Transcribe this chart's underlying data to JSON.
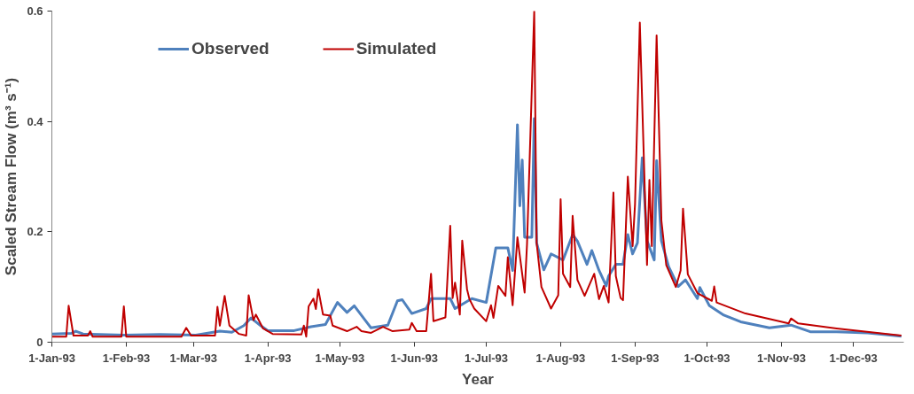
{
  "chart_data": {
    "type": "line",
    "xlabel": "Year",
    "ylabel": "Scaled Stream Flow (m³ s⁻¹)",
    "xlim": [
      "1993-01-01",
      "1993-12-22"
    ],
    "xticks": [
      {
        "value": "1993-01-01",
        "label": "1-Jan-93"
      },
      {
        "value": "1993-02-01",
        "label": "1-Feb-93"
      },
      {
        "value": "1993-03-01",
        "label": "1-Mar-93"
      },
      {
        "value": "1993-04-01",
        "label": "1-Apr-93"
      },
      {
        "value": "1993-05-01",
        "label": "1-May-93"
      },
      {
        "value": "1993-06-01",
        "label": "1-Jun-93"
      },
      {
        "value": "1993-07-01",
        "label": "1-Jul-93"
      },
      {
        "value": "1993-08-01",
        "label": "1-Aug-93"
      },
      {
        "value": "1993-09-01",
        "label": "1-Sep-93"
      },
      {
        "value": "1993-10-01",
        "label": "1-Oct-93"
      },
      {
        "value": "1993-11-01",
        "label": "1-Nov-93"
      },
      {
        "value": "1993-12-01",
        "label": "1-Dec-93"
      }
    ],
    "ylim": [
      0,
      0.6
    ],
    "yticks": [
      0,
      0.2,
      0.4,
      0.6
    ],
    "grid": false,
    "legend": "top left",
    "marker": "none",
    "line_style": "solid",
    "series": [
      {
        "name": "Observed",
        "color": "#4f81bd",
        "x": [
          "1993-01-01",
          "1993-01-09",
          "1993-01-11",
          "1993-01-14",
          "1993-01-31",
          "1993-02-15",
          "1993-03-02",
          "1993-03-12",
          "1993-03-17",
          "1993-03-22",
          "1993-03-25",
          "1993-03-29",
          "1993-04-01",
          "1993-04-12",
          "1993-04-19",
          "1993-04-25",
          "1993-04-30",
          "1993-05-04",
          "1993-05-07",
          "1993-05-14",
          "1993-05-21",
          "1993-05-25",
          "1993-05-27",
          "1993-05-31",
          "1993-06-06",
          "1993-06-08",
          "1993-06-16",
          "1993-06-18",
          "1993-06-25",
          "1993-07-01",
          "1993-07-05",
          "1993-07-10",
          "1993-07-12",
          "1993-07-14",
          "1993-07-15",
          "1993-07-16",
          "1993-07-17",
          "1993-07-20",
          "1993-07-21",
          "1993-07-22",
          "1993-07-25",
          "1993-07-28",
          "1993-08-02",
          "1993-08-06",
          "1993-08-08",
          "1993-08-12",
          "1993-08-14",
          "1993-08-17",
          "1993-08-20",
          "1993-08-21",
          "1993-08-24",
          "1993-08-27",
          "1993-08-29",
          "1993-08-31",
          "1993-09-02",
          "1993-09-04",
          "1993-09-06",
          "1993-09-09",
          "1993-09-10",
          "1993-09-12",
          "1993-09-15",
          "1993-09-19",
          "1993-09-22",
          "1993-09-27",
          "1993-09-28",
          "1993-10-02",
          "1993-10-08",
          "1993-10-15",
          "1993-10-27",
          "1993-11-05",
          "1993-11-13",
          "1993-11-24",
          "1993-12-07",
          "1993-12-21"
        ],
        "values": [
          0.015,
          0.016,
          0.02,
          0.015,
          0.013,
          0.014,
          0.013,
          0.02,
          0.018,
          0.03,
          0.044,
          0.03,
          0.021,
          0.021,
          0.028,
          0.032,
          0.072,
          0.054,
          0.066,
          0.026,
          0.031,
          0.075,
          0.077,
          0.052,
          0.061,
          0.079,
          0.079,
          0.061,
          0.079,
          0.072,
          0.171,
          0.171,
          0.13,
          0.394,
          0.247,
          0.33,
          0.19,
          0.19,
          0.405,
          0.18,
          0.131,
          0.16,
          0.149,
          0.195,
          0.183,
          0.141,
          0.166,
          0.13,
          0.102,
          0.12,
          0.141,
          0.141,
          0.195,
          0.16,
          0.18,
          0.334,
          0.184,
          0.149,
          0.329,
          0.184,
          0.137,
          0.101,
          0.113,
          0.079,
          0.099,
          0.066,
          0.049,
          0.037,
          0.026,
          0.031,
          0.019,
          0.019,
          0.017,
          0.011
        ]
      },
      {
        "name": "Simulated",
        "color": "#c00000",
        "x": [
          "1993-01-01",
          "1993-01-07",
          "1993-01-08",
          "1993-01-10",
          "1993-01-16",
          "1993-01-17",
          "1993-01-18",
          "1993-01-30",
          "1993-01-31",
          "1993-02-01",
          "1993-02-24",
          "1993-02-26",
          "1993-02-28",
          "1993-03-10",
          "1993-03-11",
          "1993-03-12",
          "1993-03-14",
          "1993-03-16",
          "1993-03-20",
          "1993-03-23",
          "1993-03-24",
          "1993-03-26",
          "1993-03-27",
          "1993-03-30",
          "1993-04-03",
          "1993-04-15",
          "1993-04-16",
          "1993-04-17",
          "1993-04-18",
          "1993-04-20",
          "1993-04-21",
          "1993-04-22",
          "1993-04-24",
          "1993-04-27",
          "1993-04-28",
          "1993-05-04",
          "1993-05-08",
          "1993-05-10",
          "1993-05-14",
          "1993-05-19",
          "1993-05-23",
          "1993-05-30",
          "1993-05-31",
          "1993-06-02",
          "1993-06-06",
          "1993-06-08",
          "1993-06-09",
          "1993-06-14",
          "1993-06-16",
          "1993-06-17",
          "1993-06-18",
          "1993-06-20",
          "1993-06-21",
          "1993-06-23",
          "1993-06-24",
          "1993-06-26",
          "1993-07-01",
          "1993-07-03",
          "1993-07-04",
          "1993-07-06",
          "1993-07-09",
          "1993-07-10",
          "1993-07-12",
          "1993-07-14",
          "1993-07-17",
          "1993-07-18",
          "1993-07-21",
          "1993-07-22",
          "1993-07-24",
          "1993-07-28",
          "1993-07-31",
          "1993-08-01",
          "1993-08-02",
          "1993-08-05",
          "1993-08-06",
          "1993-08-08",
          "1993-08-11",
          "1993-08-15",
          "1993-08-17",
          "1993-08-19",
          "1993-08-21",
          "1993-08-23",
          "1993-08-24",
          "1993-08-26",
          "1993-08-27",
          "1993-08-29",
          "1993-08-31",
          "1993-09-01",
          "1993-09-03",
          "1993-09-06",
          "1993-09-07",
          "1993-09-08",
          "1993-09-10",
          "1993-09-12",
          "1993-09-14",
          "1993-09-18",
          "1993-09-20",
          "1993-09-21",
          "1993-09-23",
          "1993-09-27",
          "1993-10-03",
          "1993-10-04",
          "1993-10-05",
          "1993-10-17",
          "1993-11-04",
          "1993-11-05",
          "1993-11-08",
          "1993-11-24",
          "1993-12-21"
        ],
        "values": [
          0.01,
          0.01,
          0.066,
          0.012,
          0.012,
          0.02,
          0.01,
          0.01,
          0.065,
          0.01,
          0.01,
          0.026,
          0.012,
          0.012,
          0.064,
          0.03,
          0.084,
          0.03,
          0.015,
          0.012,
          0.085,
          0.04,
          0.05,
          0.025,
          0.015,
          0.014,
          0.03,
          0.01,
          0.065,
          0.079,
          0.06,
          0.096,
          0.05,
          0.048,
          0.03,
          0.02,
          0.028,
          0.02,
          0.017,
          0.028,
          0.02,
          0.023,
          0.035,
          0.02,
          0.02,
          0.124,
          0.038,
          0.045,
          0.211,
          0.08,
          0.108,
          0.05,
          0.184,
          0.096,
          0.078,
          0.061,
          0.038,
          0.067,
          0.044,
          0.102,
          0.084,
          0.154,
          0.067,
          0.19,
          0.09,
          0.178,
          0.6,
          0.18,
          0.1,
          0.061,
          0.085,
          0.259,
          0.124,
          0.1,
          0.229,
          0.113,
          0.084,
          0.124,
          0.078,
          0.102,
          0.072,
          0.271,
          0.12,
          0.08,
          0.076,
          0.3,
          0.174,
          0.25,
          0.579,
          0.14,
          0.294,
          0.174,
          0.556,
          0.22,
          0.14,
          0.1,
          0.13,
          0.242,
          0.123,
          0.089,
          0.075,
          0.101,
          0.072,
          0.052,
          0.034,
          0.043,
          0.034,
          0.025,
          0.012
        ]
      }
    ]
  }
}
